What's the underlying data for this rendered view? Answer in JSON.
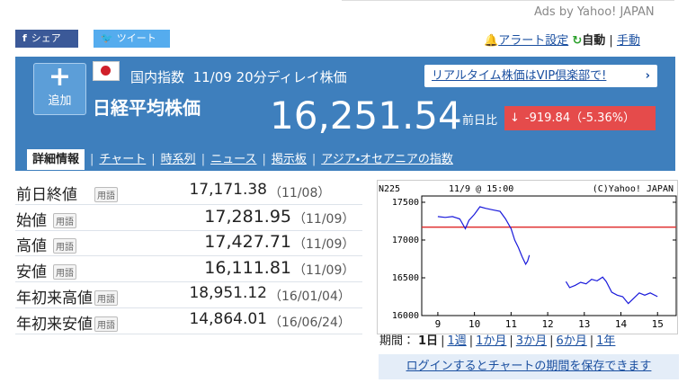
{
  "ads": "Ads by Yahoo! JAPAN",
  "share": {
    "facebook": "シェア",
    "twitter": "ツイート"
  },
  "alert": "アラート設定",
  "auto": "自動",
  "manual": "手動",
  "header": {
    "add": "追加",
    "category": "国内指数",
    "date": "11/09",
    "delay": "20分ディレイ株価",
    "vip": "リアルタイム株価はVIP倶楽部で!",
    "name": "日経平均株価",
    "price": "16,251.54",
    "change_label": "前日比",
    "change": "-919.84（-5.36%）"
  },
  "tabs": [
    "詳細情報",
    "チャート",
    "時系列",
    "ニュース",
    "掲示板",
    "アジア・オセアニアの指数"
  ],
  "table": {
    "rows": [
      [
        "前日終値",
        "用語",
        "17,171.38",
        "（11/08）"
      ],
      [
        "始値",
        "用語",
        "17,281.95",
        "（11/09）"
      ],
      [
        "高値",
        "用語",
        "17,427.71",
        "（11/09）"
      ],
      [
        "安値",
        "用語",
        "16,111.81",
        "（11/09）"
      ],
      [
        "年初来高値",
        "用語",
        "18,951.12",
        "（16/01/04）"
      ],
      [
        "年初来安値",
        "用語",
        "14,864.01",
        "（16/06/24）"
      ]
    ]
  },
  "chart": {
    "type": "line",
    "symbol": "N225",
    "stamp": "11/9 @ 15:00",
    "copyright": "(C)Yahoo! JAPAN",
    "color": "#1a1adb",
    "reference_line": 17171.38,
    "reference_color": "#e03030",
    "xlim": [
      8.56,
      15.51
    ],
    "xticks": [
      9,
      10,
      11,
      12,
      13,
      14,
      15
    ],
    "ylim": [
      16000,
      17583
    ],
    "yticks": [
      16000,
      16500,
      17000,
      17500
    ],
    "x": [
      9.0,
      9.2,
      9.4,
      9.6,
      9.75,
      9.85,
      10.0,
      10.15,
      10.3,
      10.5,
      10.7,
      10.85,
      11.0,
      11.1,
      11.2,
      11.3,
      11.4,
      11.45,
      11.5,
      12.0,
      12.5,
      12.6,
      12.75,
      12.9,
      13.05,
      13.2,
      13.35,
      13.5,
      13.6,
      13.75,
      13.9,
      14.05,
      14.2,
      14.35,
      14.5,
      14.65,
      14.8,
      15.0
    ],
    "values": [
      17310,
      17300,
      17310,
      17280,
      17150,
      17260,
      17340,
      17440,
      17420,
      17400,
      17380,
      17280,
      17150,
      17000,
      16900,
      16780,
      16680,
      16720,
      16800,
      null,
      16450,
      16370,
      16400,
      16440,
      16420,
      16480,
      16460,
      16510,
      16450,
      16310,
      16270,
      16250,
      16160,
      16230,
      16300,
      16270,
      16300,
      16251
    ]
  },
  "periods_label": "期間：",
  "periods": [
    "1日",
    "1週",
    "1か月",
    "3か月",
    "6か月",
    "1年"
  ],
  "save": "ログインするとチャートの期間を保存できます"
}
